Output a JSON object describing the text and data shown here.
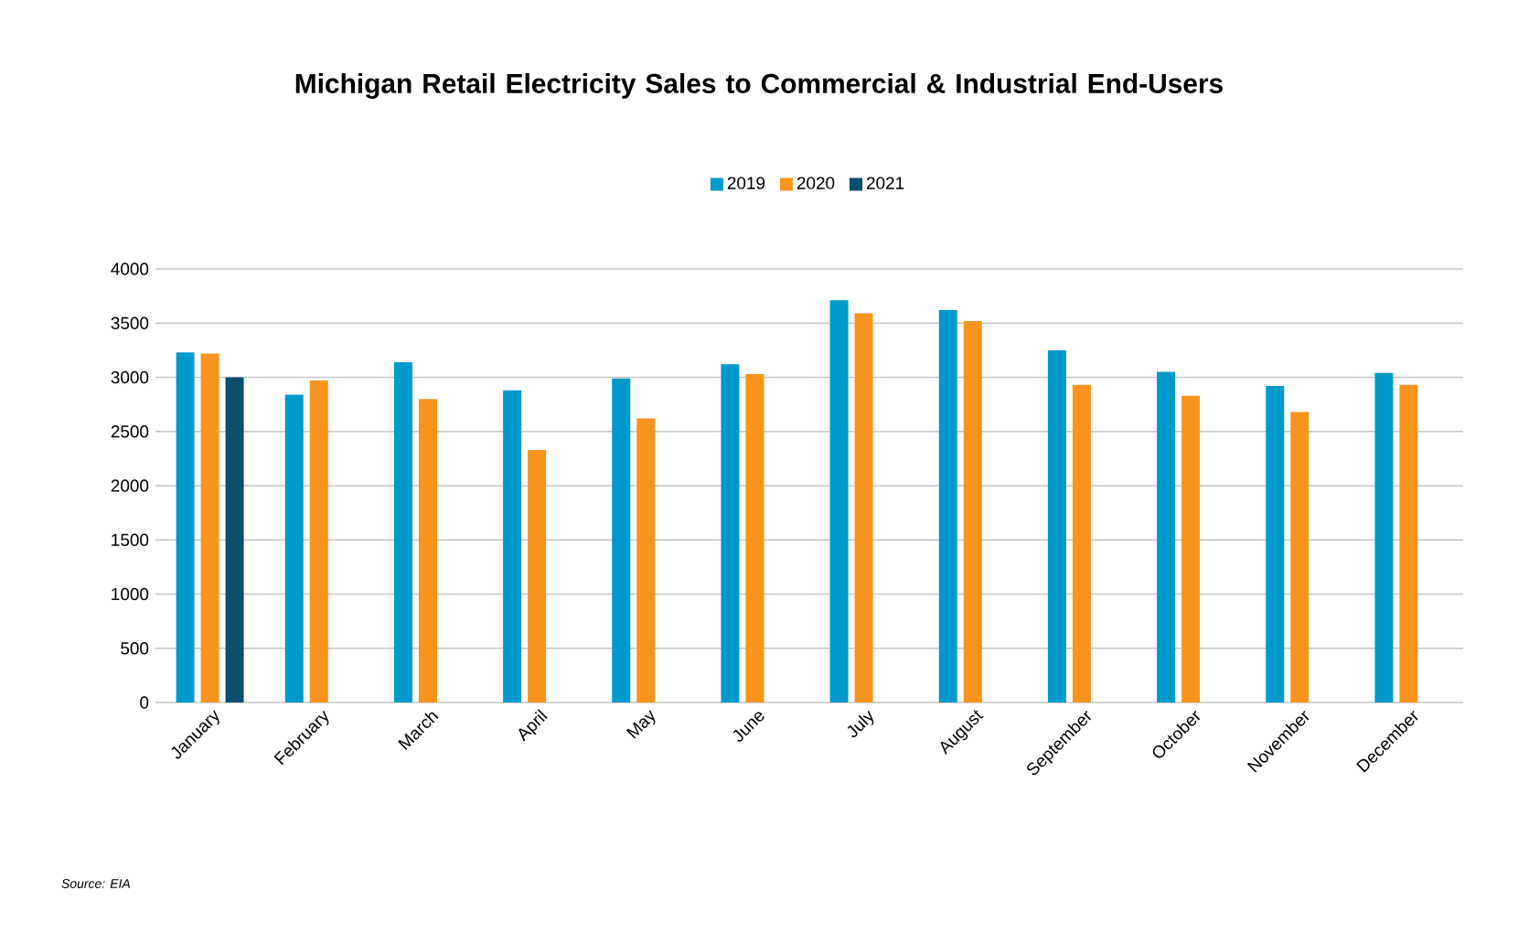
{
  "chart_data": {
    "type": "bar",
    "title": "Michigan Retail Electricity Sales to Commercial & Industrial End-Users",
    "categories": [
      "January",
      "February",
      "March",
      "April",
      "May",
      "June",
      "July",
      "August",
      "September",
      "October",
      "November",
      "December"
    ],
    "series": [
      {
        "name": "2019",
        "color": "#0099cc",
        "values": [
          3230,
          2840,
          3140,
          2880,
          2990,
          3120,
          3710,
          3620,
          3250,
          3050,
          2920,
          3040
        ]
      },
      {
        "name": "2020",
        "color": "#f7941d",
        "values": [
          3220,
          2970,
          2800,
          2330,
          2620,
          3030,
          3590,
          3520,
          2930,
          2830,
          2680,
          2930
        ]
      },
      {
        "name": "2021",
        "color": "#0a4f6e",
        "values": [
          3000,
          null,
          null,
          null,
          null,
          null,
          null,
          null,
          null,
          null,
          null,
          null
        ]
      }
    ],
    "ylim": [
      0,
      4000
    ],
    "yticks": [
      0,
      500,
      1000,
      1500,
      2000,
      2500,
      3000,
      3500,
      4000
    ],
    "grid": "y",
    "legend": "top",
    "annotations": [
      "Source: EIA"
    ]
  }
}
